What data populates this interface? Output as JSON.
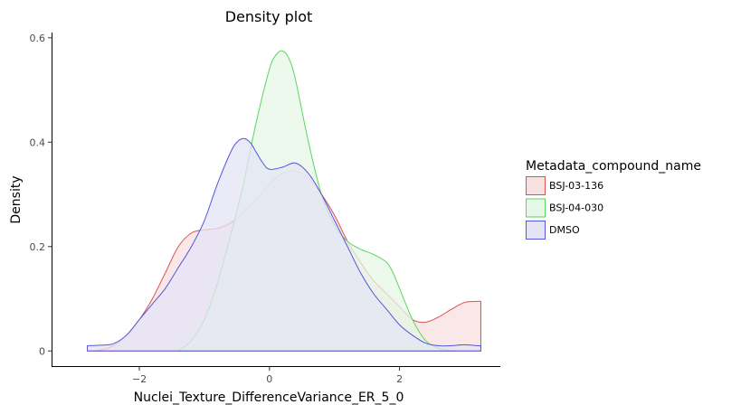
{
  "chart_data": {
    "type": "area",
    "title": "Density plot",
    "xlabel": "Nuclei_Texture_DifferenceVariance_ER_5_0",
    "ylabel": "Density",
    "xlim": [
      -3.35,
      3.55
    ],
    "ylim": [
      -0.029,
      0.61
    ],
    "x_ticks": [
      -2,
      0,
      2
    ],
    "x_tick_labels": [
      "−2",
      "0",
      "2"
    ],
    "y_ticks": [
      0,
      0.2,
      0.4,
      0.6
    ],
    "y_tick_labels": [
      "0",
      "0.2",
      "0.4",
      "0.6"
    ],
    "grid": false,
    "legend": {
      "title": "Metadata_compound_name",
      "placement": "right"
    },
    "series": [
      {
        "name": "BSJ-03-136",
        "color": "#d9534f",
        "fill": "#f8e0e0",
        "x": [
          -2.8,
          -2.6,
          -2.4,
          -2.2,
          -2.0,
          -1.8,
          -1.6,
          -1.4,
          -1.2,
          -1.0,
          -0.8,
          -0.6,
          -0.4,
          -0.2,
          0.0,
          0.2,
          0.4,
          0.6,
          0.8,
          1.0,
          1.2,
          1.4,
          1.6,
          1.8,
          2.0,
          2.2,
          2.4,
          2.6,
          2.8,
          3.0,
          3.2,
          3.25
        ],
        "y": [
          0.0,
          0.002,
          0.01,
          0.03,
          0.06,
          0.1,
          0.15,
          0.2,
          0.226,
          0.232,
          0.235,
          0.245,
          0.265,
          0.29,
          0.32,
          0.34,
          0.345,
          0.33,
          0.3,
          0.26,
          0.21,
          0.17,
          0.135,
          0.11,
          0.085,
          0.06,
          0.055,
          0.065,
          0.08,
          0.093,
          0.095,
          0.095
        ]
      },
      {
        "name": "BSJ-04-030",
        "color": "#5cd65c",
        "fill": "#e6f7e6",
        "x": [
          -1.4,
          -1.2,
          -1.0,
          -0.8,
          -0.6,
          -0.4,
          -0.2,
          0.0,
          0.1,
          0.2,
          0.3,
          0.4,
          0.6,
          0.8,
          1.0,
          1.2,
          1.4,
          1.6,
          1.8,
          1.9,
          2.0,
          2.2,
          2.4,
          2.6,
          2.8,
          2.9
        ],
        "y": [
          0.0,
          0.02,
          0.06,
          0.13,
          0.22,
          0.32,
          0.44,
          0.54,
          0.567,
          0.575,
          0.56,
          0.52,
          0.4,
          0.3,
          0.24,
          0.21,
          0.195,
          0.185,
          0.17,
          0.15,
          0.12,
          0.06,
          0.02,
          0.005,
          0.001,
          0.0
        ]
      },
      {
        "name": "DMSO",
        "color": "#5555dd",
        "fill": "#e4e4f6",
        "x": [
          -2.8,
          -2.6,
          -2.4,
          -2.2,
          -2.0,
          -1.8,
          -1.6,
          -1.4,
          -1.2,
          -1.0,
          -0.8,
          -0.6,
          -0.5,
          -0.4,
          -0.3,
          -0.2,
          -0.1,
          0.0,
          0.2,
          0.4,
          0.6,
          0.8,
          1.0,
          1.2,
          1.4,
          1.6,
          1.8,
          2.0,
          2.2,
          2.4,
          2.6,
          2.8,
          3.0,
          3.2,
          3.25
        ],
        "y": [
          0.01,
          0.011,
          0.014,
          0.03,
          0.06,
          0.09,
          0.12,
          0.16,
          0.2,
          0.25,
          0.32,
          0.38,
          0.4,
          0.407,
          0.4,
          0.38,
          0.36,
          0.348,
          0.352,
          0.36,
          0.34,
          0.3,
          0.25,
          0.2,
          0.15,
          0.11,
          0.08,
          0.05,
          0.03,
          0.015,
          0.01,
          0.01,
          0.012,
          0.01,
          0.01
        ]
      }
    ]
  }
}
